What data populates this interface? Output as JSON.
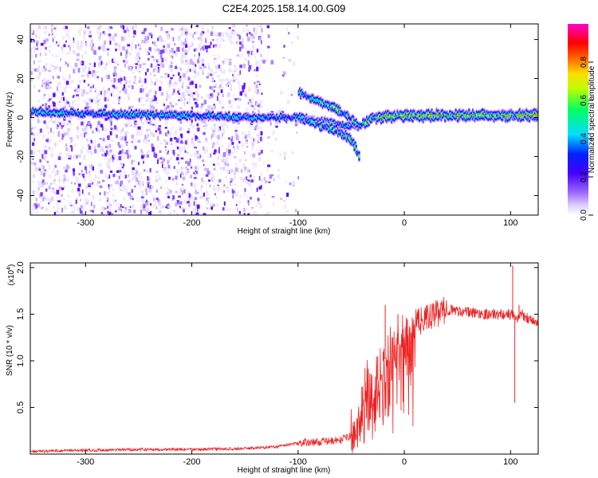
{
  "title": "C2E4.2025.158.14.00.G09",
  "chart_data": [
    {
      "type": "heatmap",
      "xlabel": "Height of straight line (km)",
      "ylabel": "Frequency (Hz)",
      "xlim": [
        -352,
        126
      ],
      "ylim": [
        -50,
        48
      ],
      "xticks": [
        -300,
        -200,
        -100,
        0,
        100
      ],
      "yticks": [
        -40,
        -20,
        0,
        20,
        40
      ],
      "colorbar": {
        "label": "Normalized spectral amplitude",
        "range": [
          0,
          1
        ],
        "ticks": [
          "0.0",
          "0.2",
          "0.4",
          "0.6",
          "0.8"
        ],
        "tick_values": [
          0.0,
          0.2,
          0.4,
          0.6,
          0.8
        ],
        "colors": [
          "#ffffff",
          "#ede4ff",
          "#d8c8ff",
          "#9966ff",
          "#5500ff",
          "#0000ff",
          "#00ffff",
          "#00ff00",
          "#ffff00",
          "#ff8800",
          "#ff0000",
          "#ff00ff"
        ]
      },
      "features": [
        {
          "name": "main-tone",
          "x": [
            -352,
            -300,
            -200,
            -140,
            -100,
            -80,
            -60,
            -45,
            -30,
            0,
            60,
            126
          ],
          "y": [
            3,
            2,
            1,
            0,
            0,
            -2,
            -4,
            -5,
            0,
            1,
            1,
            1
          ]
        },
        {
          "name": "upper-branch",
          "x": [
            -100,
            -80,
            -60,
            -45
          ],
          "y": [
            13,
            8,
            3,
            -3
          ]
        },
        {
          "name": "lower-branch",
          "x": [
            -100,
            -85,
            -70,
            -60,
            -50,
            -43
          ],
          "y": [
            0,
            -3,
            -6,
            -8,
            -12,
            -20
          ]
        }
      ],
      "noise_region_x": [
        -352,
        -140
      ]
    },
    {
      "type": "line",
      "xlabel": "Height of straight line (km)",
      "ylabel": "SNR (10 * v/v)",
      "y_multiplier": "(x10",
      "y_multiplier_exp": "4",
      "y_multiplier_close": ")",
      "xlim": [
        -352,
        126
      ],
      "ylim": [
        0,
        2.05
      ],
      "xticks": [
        -300,
        -200,
        -100,
        0,
        100
      ],
      "yticks": [
        0.5,
        1.0,
        1.5,
        2.0
      ],
      "color": "#ee2222",
      "x": [
        -352,
        -300,
        -250,
        -200,
        -150,
        -120,
        -100,
        -80,
        -60,
        -50,
        -45,
        -40,
        -35,
        -30,
        -25,
        -20,
        -15,
        -10,
        -5,
        0,
        10,
        20,
        30,
        40,
        60,
        80,
        100,
        105,
        110,
        126
      ],
      "y": [
        0.03,
        0.04,
        0.05,
        0.05,
        0.06,
        0.08,
        0.12,
        0.13,
        0.15,
        0.2,
        0.3,
        0.5,
        0.7,
        0.65,
        0.8,
        1.0,
        1.05,
        1.1,
        1.2,
        1.3,
        1.4,
        1.45,
        1.5,
        1.55,
        1.52,
        1.5,
        1.5,
        1.45,
        1.5,
        1.4
      ],
      "spikes": [
        {
          "x": -47,
          "y": 0.35
        },
        {
          "x": -40,
          "y": 0.72
        },
        {
          "x": -37,
          "y": 0.92
        },
        {
          "x": -34,
          "y": 0.9
        },
        {
          "x": -25,
          "y": 1.05
        },
        {
          "x": -20,
          "y": 1.1
        },
        {
          "x": -18,
          "y": 1.6
        },
        {
          "x": -11,
          "y": 1.25
        },
        {
          "x": -6,
          "y": 1.5
        },
        {
          "x": 102,
          "y": 2.02
        },
        {
          "x": 104,
          "y": 0.55
        },
        {
          "x": 108,
          "y": 1.6
        }
      ]
    }
  ]
}
